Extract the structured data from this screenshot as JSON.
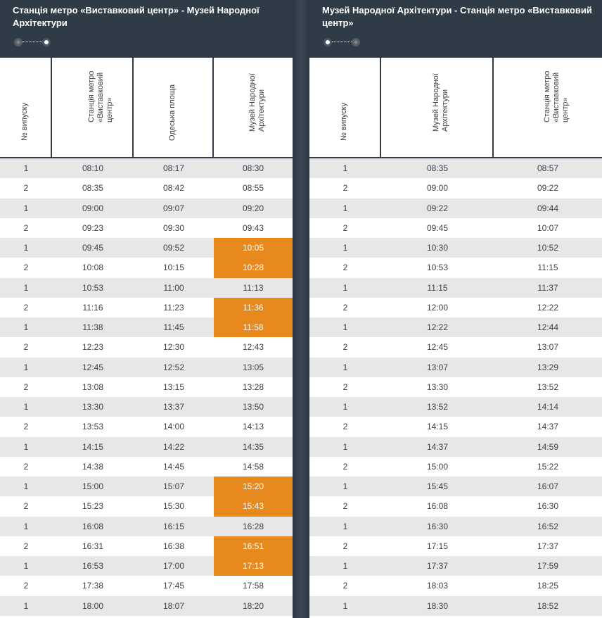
{
  "colors": {
    "header_bg": "#2f3b47",
    "highlight": "#e8891e",
    "row_alt": "#e7e7e7"
  },
  "left": {
    "title": "Станція метро «Виставковий центр» - Музей Народної Архітектури",
    "headers": [
      "№ випуску",
      "Станція метро «Виставковий центр»",
      "Одеська площа",
      "Музей Народної Архітектури"
    ],
    "rows": [
      {
        "v": "1",
        "t": [
          "08:10",
          "08:17",
          "08:30"
        ],
        "hl": false
      },
      {
        "v": "2",
        "t": [
          "08:35",
          "08:42",
          "08:55"
        ],
        "hl": false
      },
      {
        "v": "1",
        "t": [
          "09:00",
          "09:07",
          "09:20"
        ],
        "hl": false
      },
      {
        "v": "2",
        "t": [
          "09:23",
          "09:30",
          "09:43"
        ],
        "hl": false
      },
      {
        "v": "1",
        "t": [
          "09:45",
          "09:52",
          "10:05"
        ],
        "hl": true
      },
      {
        "v": "2",
        "t": [
          "10:08",
          "10:15",
          "10:28"
        ],
        "hl": true
      },
      {
        "v": "1",
        "t": [
          "10:53",
          "11:00",
          "11:13"
        ],
        "hl": false
      },
      {
        "v": "2",
        "t": [
          "11:16",
          "11:23",
          "11:36"
        ],
        "hl": true
      },
      {
        "v": "1",
        "t": [
          "11:38",
          "11:45",
          "11:58"
        ],
        "hl": true
      },
      {
        "v": "2",
        "t": [
          "12:23",
          "12:30",
          "12:43"
        ],
        "hl": false
      },
      {
        "v": "1",
        "t": [
          "12:45",
          "12:52",
          "13:05"
        ],
        "hl": false
      },
      {
        "v": "2",
        "t": [
          "13:08",
          "13:15",
          "13:28"
        ],
        "hl": false
      },
      {
        "v": "1",
        "t": [
          "13:30",
          "13:37",
          "13:50"
        ],
        "hl": false
      },
      {
        "v": "2",
        "t": [
          "13:53",
          "14:00",
          "14:13"
        ],
        "hl": false
      },
      {
        "v": "1",
        "t": [
          "14:15",
          "14:22",
          "14:35"
        ],
        "hl": false
      },
      {
        "v": "2",
        "t": [
          "14:38",
          "14:45",
          "14:58"
        ],
        "hl": false
      },
      {
        "v": "1",
        "t": [
          "15:00",
          "15:07",
          "15:20"
        ],
        "hl": true
      },
      {
        "v": "2",
        "t": [
          "15:23",
          "15:30",
          "15:43"
        ],
        "hl": true
      },
      {
        "v": "1",
        "t": [
          "16:08",
          "16:15",
          "16:28"
        ],
        "hl": false
      },
      {
        "v": "2",
        "t": [
          "16:31",
          "16:38",
          "16:51"
        ],
        "hl": true
      },
      {
        "v": "1",
        "t": [
          "16:53",
          "17:00",
          "17:13"
        ],
        "hl": true
      },
      {
        "v": "2",
        "t": [
          "17:38",
          "17:45",
          "17:58"
        ],
        "hl": false
      },
      {
        "v": "1",
        "t": [
          "18:00",
          "18:07",
          "18:20"
        ],
        "hl": false
      }
    ]
  },
  "right": {
    "title": "Музей Народної Архітектури - Станція метро «Виставковий центр»",
    "headers": [
      "№ випуску",
      "Музей Народної Архітектури",
      "Станція метро «Виставковий центр»"
    ],
    "rows": [
      {
        "v": "1",
        "t": [
          "08:35",
          "08:57"
        ]
      },
      {
        "v": "2",
        "t": [
          "09:00",
          "09:22"
        ]
      },
      {
        "v": "1",
        "t": [
          "09:22",
          "09:44"
        ]
      },
      {
        "v": "2",
        "t": [
          "09:45",
          "10:07"
        ]
      },
      {
        "v": "1",
        "t": [
          "10:30",
          "10:52"
        ]
      },
      {
        "v": "2",
        "t": [
          "10:53",
          "11:15"
        ]
      },
      {
        "v": "1",
        "t": [
          "11:15",
          "11:37"
        ]
      },
      {
        "v": "2",
        "t": [
          "12:00",
          "12:22"
        ]
      },
      {
        "v": "1",
        "t": [
          "12:22",
          "12:44"
        ]
      },
      {
        "v": "2",
        "t": [
          "12:45",
          "13:07"
        ]
      },
      {
        "v": "1",
        "t": [
          "13:07",
          "13:29"
        ]
      },
      {
        "v": "2",
        "t": [
          "13:30",
          "13:52"
        ]
      },
      {
        "v": "1",
        "t": [
          "13:52",
          "14:14"
        ]
      },
      {
        "v": "2",
        "t": [
          "14:15",
          "14:37"
        ]
      },
      {
        "v": "1",
        "t": [
          "14:37",
          "14:59"
        ]
      },
      {
        "v": "2",
        "t": [
          "15:00",
          "15:22"
        ]
      },
      {
        "v": "1",
        "t": [
          "15:45",
          "16:07"
        ]
      },
      {
        "v": "2",
        "t": [
          "16:08",
          "16:30"
        ]
      },
      {
        "v": "1",
        "t": [
          "16:30",
          "16:52"
        ]
      },
      {
        "v": "2",
        "t": [
          "17:15",
          "17:37"
        ]
      },
      {
        "v": "1",
        "t": [
          "17:37",
          "17:59"
        ]
      },
      {
        "v": "2",
        "t": [
          "18:03",
          "18:25"
        ]
      },
      {
        "v": "1",
        "t": [
          "18:30",
          "18:52"
        ]
      }
    ]
  }
}
